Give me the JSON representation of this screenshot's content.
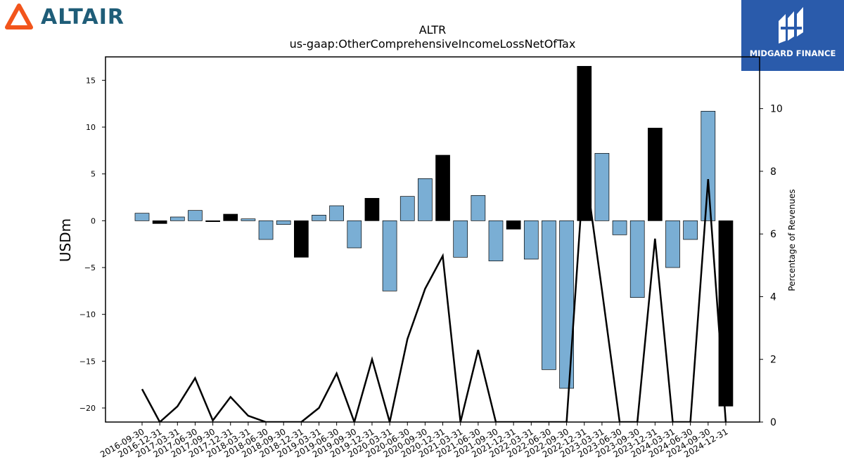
{
  "brand_left": {
    "name": "ALTAIR",
    "mark_color": "#f2551c",
    "text_color": "#1f5d78"
  },
  "brand_right": {
    "name": "MIDGARD FINANCE",
    "bg_color": "#2a5bab"
  },
  "colors": {
    "positive_bar": "#7aaed4",
    "highlight_bar": "#000000",
    "line": "#000000"
  },
  "chart_data": {
    "type": "bar",
    "title": "ALTR",
    "subtitle": "us-gaap:OtherComprehensiveIncomeLossNetOfTax",
    "ylabel": "USDm",
    "y2label": "Percentage of Revenues",
    "ylim": [
      -21.5,
      17.5
    ],
    "y2lim": [
      0,
      11.65
    ],
    "yticks": [
      -20,
      -15,
      -10,
      -5,
      0,
      5,
      10,
      15
    ],
    "y2ticks": [
      0,
      2,
      4,
      6,
      8,
      10
    ],
    "grid": false,
    "categories": [
      "2016-09-30",
      "2016-12-31",
      "2017-03-31",
      "2017-06-30",
      "2017-09-30",
      "2017-12-31",
      "2018-03-31",
      "2018-06-30",
      "2018-09-30",
      "2018-12-31",
      "2019-03-31",
      "2019-06-30",
      "2019-09-30",
      "2019-12-31",
      "2020-03-31",
      "2020-06-30",
      "2020-09-30",
      "2020-12-31",
      "2021-03-31",
      "2021-06-30",
      "2021-09-30",
      "2021-12-31",
      "2022-03-31",
      "2022-06-30",
      "2022-09-30",
      "2022-12-31",
      "2023-03-31",
      "2023-06-30",
      "2023-09-30",
      "2023-12-31",
      "2024-03-31",
      "2024-06-30",
      "2024-09-30",
      "2024-12-31"
    ],
    "series": [
      {
        "type": "bar",
        "values": [
          0.8,
          -0.3,
          0.4,
          1.1,
          -0.1,
          0.7,
          0.2,
          -2.0,
          -0.4,
          -3.9,
          0.6,
          1.6,
          -2.9,
          2.4,
          -7.5,
          2.6,
          4.5,
          7.0,
          -3.9,
          2.7,
          -4.3,
          -0.9,
          -4.1,
          -15.9,
          -17.9,
          16.5,
          7.2,
          -1.5,
          -8.2,
          9.9,
          -5.0,
          -2.0,
          11.7,
          -19.8
        ],
        "highlight": [
          false,
          true,
          false,
          false,
          true,
          true,
          false,
          false,
          false,
          true,
          false,
          false,
          false,
          true,
          false,
          false,
          false,
          true,
          false,
          false,
          false,
          true,
          false,
          false,
          false,
          true,
          false,
          false,
          false,
          true,
          false,
          false,
          false,
          true
        ]
      },
      {
        "type": "line",
        "axis": "right",
        "values": [
          1.05,
          0.0,
          0.5,
          1.4,
          0.05,
          0.8,
          0.2,
          0.0,
          0.0,
          0.0,
          0.45,
          1.55,
          0.0,
          2.0,
          0.0,
          2.65,
          4.25,
          5.3,
          0.0,
          2.3,
          0.0,
          0.0,
          0.0,
          0.0,
          0.0,
          8.3,
          4.2,
          0.0,
          0.0,
          5.85,
          0.0,
          0.0,
          7.75,
          0.0
        ]
      }
    ]
  }
}
